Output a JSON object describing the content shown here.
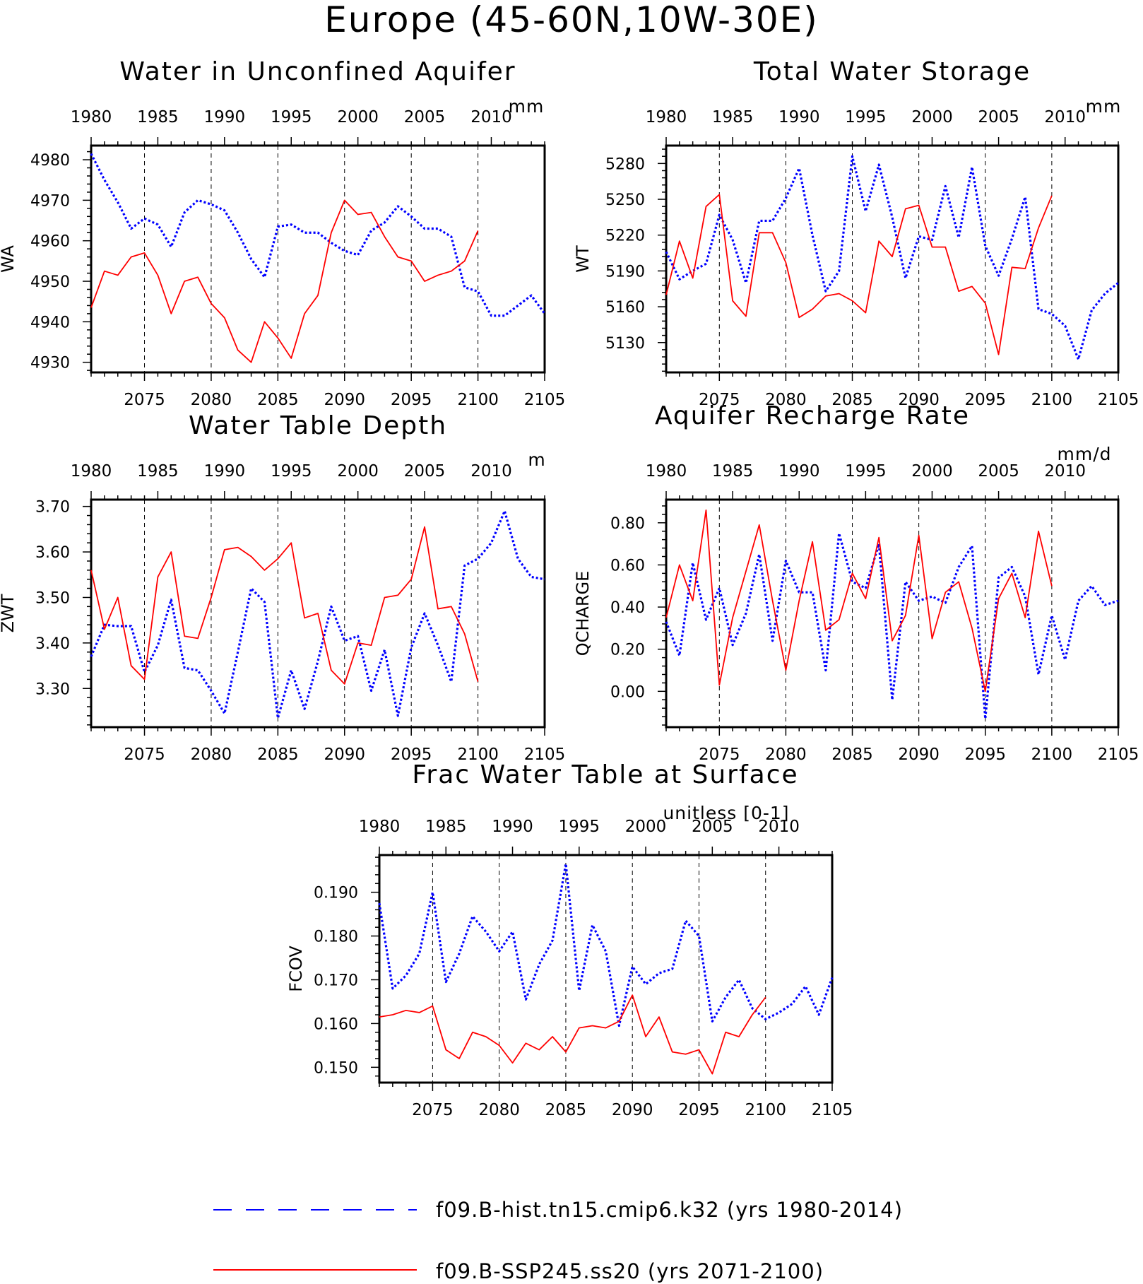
{
  "title": "Europe (45-60N,10W-30E)",
  "colors": {
    "hist": "#0000ff",
    "future": "#ff0000",
    "axis": "#000000"
  },
  "legend": {
    "hist_label": "f09.B-hist.tn15.cmip6.k32 (yrs 1980-2014)",
    "future_label": "f09.B-SSP245.ss20 (yrs 2071-2100)"
  },
  "axes_common": {
    "top_ticks": [
      "1980",
      "1985",
      "1990",
      "1995",
      "2000",
      "2005",
      "2010"
    ],
    "bottom_ticks": [
      "2075",
      "2080",
      "2085",
      "2090",
      "2095",
      "2100",
      "2105"
    ]
  },
  "chart_data": [
    {
      "type": "line",
      "title": "Water in Unconfined Aquifer",
      "ylabel": "WA",
      "units": "mm",
      "ylim": [
        4927.5,
        4983.5
      ],
      "yticks": [
        4930,
        4940,
        4950,
        4960,
        4970,
        4980
      ],
      "ytick_labels": [
        "4930",
        "4940",
        "4950",
        "4960",
        "4970",
        "4980"
      ],
      "x_top_range": [
        1980,
        2014
      ],
      "x_bottom_range": [
        2071,
        2105
      ],
      "vlines": [
        2075,
        2080,
        2085,
        2090,
        2095,
        2100
      ],
      "series": [
        {
          "name": "f09.B-hist.tn15.cmip6.k32",
          "x_axis": "top",
          "start": 1980,
          "values": [
            4981.5,
            4975,
            4969.5,
            4963,
            4965.5,
            4964,
            4958.5,
            4967,
            4970,
            4969,
            4967.5,
            4962,
            4955.5,
            4951,
            4963.5,
            4964,
            4962,
            4962,
            4959.5,
            4957.5,
            4956.5,
            4962.5,
            4964.5,
            4968.5,
            4966,
            4963,
            4963,
            4961,
            4948.5,
            4947.5,
            4941.5,
            4941.5,
            4944,
            4946.5,
            4942
          ]
        },
        {
          "name": "f09.B-SSP245.ss20",
          "x_axis": "bottom",
          "start": 2071,
          "values": [
            4943.5,
            4952.5,
            4951.5,
            4956,
            4957,
            4951.5,
            4942,
            4950,
            4951,
            4944.5,
            4941,
            4933,
            4930,
            4940,
            4936,
            4931,
            4942,
            4946.5,
            4962,
            4970,
            4966.5,
            4967,
            4961,
            4956,
            4955,
            4950,
            4951.5,
            4952.5,
            4955,
            4962.5
          ]
        }
      ]
    },
    {
      "type": "line",
      "title": "Total Water Storage",
      "ylabel": "WT",
      "units": "mm",
      "ylim": [
        5105,
        5295
      ],
      "yticks": [
        5130,
        5160,
        5190,
        5220,
        5250,
        5280
      ],
      "ytick_labels": [
        "5130",
        "5160",
        "5190",
        "5220",
        "5250",
        "5280"
      ],
      "x_top_range": [
        1980,
        2014
      ],
      "x_bottom_range": [
        2071,
        2105
      ],
      "vlines": [
        2075,
        2080,
        2085,
        2090,
        2095,
        2100
      ],
      "series": [
        {
          "name": "f09.B-hist.tn15.cmip6.k32",
          "x_axis": "top",
          "start": 1980,
          "values": [
            5206,
            5183,
            5190,
            5196,
            5237,
            5216,
            5180,
            5232,
            5232,
            5251,
            5276,
            5220,
            5173,
            5190,
            5286,
            5240,
            5279,
            5235,
            5184,
            5219,
            5216,
            5261,
            5218,
            5277,
            5211,
            5186,
            5217,
            5252,
            5158,
            5154,
            5144,
            5116,
            5157,
            5171,
            5180
          ]
        },
        {
          "name": "f09.B-SSP245.ss20",
          "x_axis": "bottom",
          "start": 2071,
          "values": [
            5170,
            5215,
            5184,
            5244,
            5254,
            5165,
            5152,
            5222,
            5222,
            5197,
            5151,
            5158,
            5169,
            5171,
            5165,
            5155,
            5215,
            5202,
            5242,
            5245,
            5210,
            5210,
            5173,
            5177,
            5163,
            5120,
            5193,
            5192,
            5226,
            5253
          ]
        }
      ]
    },
    {
      "type": "line",
      "title": "Water Table Depth",
      "ylabel": "ZWT",
      "units": "m",
      "ylim": [
        3.215,
        3.715
      ],
      "yticks": [
        3.3,
        3.4,
        3.5,
        3.6,
        3.7
      ],
      "ytick_labels": [
        "3.30",
        "3.40",
        "3.50",
        "3.60",
        "3.70"
      ],
      "x_top_range": [
        1980,
        2014
      ],
      "x_bottom_range": [
        2071,
        2105
      ],
      "vlines": [
        2075,
        2080,
        2085,
        2090,
        2095,
        2100
      ],
      "series": [
        {
          "name": "f09.B-hist.tn15.cmip6.k32",
          "x_axis": "top",
          "start": 1980,
          "values": [
            3.37,
            3.44,
            3.437,
            3.437,
            3.336,
            3.395,
            3.495,
            3.345,
            3.34,
            3.295,
            3.245,
            3.38,
            3.52,
            3.49,
            3.235,
            3.34,
            3.255,
            3.36,
            3.48,
            3.405,
            3.415,
            3.295,
            3.385,
            3.24,
            3.39,
            3.465,
            3.395,
            3.315,
            3.57,
            3.585,
            3.62,
            3.69,
            3.585,
            3.545,
            3.54
          ]
        },
        {
          "name": "f09.B-SSP245.ss20",
          "x_axis": "bottom",
          "start": 2071,
          "values": [
            3.56,
            3.43,
            3.5,
            3.35,
            3.32,
            3.545,
            3.6,
            3.415,
            3.41,
            3.5,
            3.605,
            3.61,
            3.59,
            3.56,
            3.585,
            3.62,
            3.455,
            3.465,
            3.34,
            3.31,
            3.4,
            3.395,
            3.5,
            3.505,
            3.54,
            3.655,
            3.475,
            3.48,
            3.42,
            3.315
          ]
        }
      ]
    },
    {
      "type": "line",
      "title": "Aquifer Recharge Rate",
      "ylabel": "QCHARGE",
      "units": "mm/d",
      "ylim": [
        -0.17,
        0.91
      ],
      "yticks": [
        0.0,
        0.2,
        0.4,
        0.6,
        0.8
      ],
      "ytick_labels": [
        "0.00",
        "0.20",
        "0.40",
        "0.60",
        "0.80"
      ],
      "x_top_range": [
        1980,
        2014
      ],
      "x_bottom_range": [
        2071,
        2105
      ],
      "vlines": [
        2075,
        2080,
        2085,
        2090,
        2095,
        2100
      ],
      "series": [
        {
          "name": "f09.B-hist.tn15.cmip6.k32",
          "x_axis": "top",
          "start": 1980,
          "values": [
            0.33,
            0.17,
            0.61,
            0.34,
            0.49,
            0.22,
            0.37,
            0.65,
            0.24,
            0.62,
            0.47,
            0.47,
            0.1,
            0.75,
            0.52,
            0.49,
            0.7,
            -0.04,
            0.52,
            0.43,
            0.45,
            0.42,
            0.59,
            0.69,
            -0.13,
            0.54,
            0.59,
            0.45,
            0.08,
            0.36,
            0.15,
            0.43,
            0.5,
            0.41,
            0.43
          ]
        },
        {
          "name": "f09.B-SSP245.ss20",
          "x_axis": "bottom",
          "start": 2071,
          "values": [
            0.35,
            0.6,
            0.43,
            0.86,
            0.03,
            0.35,
            0.57,
            0.79,
            0.43,
            0.1,
            0.43,
            0.71,
            0.29,
            0.34,
            0.56,
            0.44,
            0.73,
            0.24,
            0.36,
            0.74,
            0.25,
            0.47,
            0.52,
            0.3,
            0.0,
            0.44,
            0.56,
            0.35,
            0.76,
            0.5
          ]
        }
      ]
    },
    {
      "type": "line",
      "title": "Frac Water Table at Surface",
      "ylabel": "FCOV",
      "units": "unitless [0-1]",
      "ylim": [
        0.1465,
        0.1985
      ],
      "yticks": [
        0.15,
        0.16,
        0.17,
        0.18,
        0.19
      ],
      "ytick_labels": [
        "0.150",
        "0.160",
        "0.170",
        "0.180",
        "0.190"
      ],
      "x_top_range": [
        1980,
        2014
      ],
      "x_bottom_range": [
        2071,
        2105
      ],
      "vlines": [
        2075,
        2080,
        2085,
        2090,
        2095,
        2100
      ],
      "series": [
        {
          "name": "f09.B-hist.tn15.cmip6.k32",
          "x_axis": "top",
          "start": 1980,
          "values": [
            0.1875,
            0.168,
            0.171,
            0.176,
            0.19,
            0.1695,
            0.176,
            0.1845,
            0.181,
            0.1765,
            0.181,
            0.1655,
            0.1735,
            0.179,
            0.1965,
            0.1675,
            0.1825,
            0.1765,
            0.1595,
            0.173,
            0.169,
            0.1715,
            0.1725,
            0.1835,
            0.18,
            0.1605,
            0.166,
            0.17,
            0.1635,
            0.161,
            0.1625,
            0.1645,
            0.1685,
            0.162,
            0.1705
          ]
        },
        {
          "name": "f09.B-SSP245.ss20",
          "x_axis": "bottom",
          "start": 2071,
          "values": [
            0.1615,
            0.162,
            0.163,
            0.1625,
            0.164,
            0.154,
            0.152,
            0.158,
            0.157,
            0.155,
            0.151,
            0.1555,
            0.154,
            0.157,
            0.1535,
            0.159,
            0.1595,
            0.159,
            0.1605,
            0.1665,
            0.157,
            0.1615,
            0.1535,
            0.153,
            0.154,
            0.1485,
            0.158,
            0.157,
            0.162,
            0.166
          ]
        }
      ]
    }
  ]
}
